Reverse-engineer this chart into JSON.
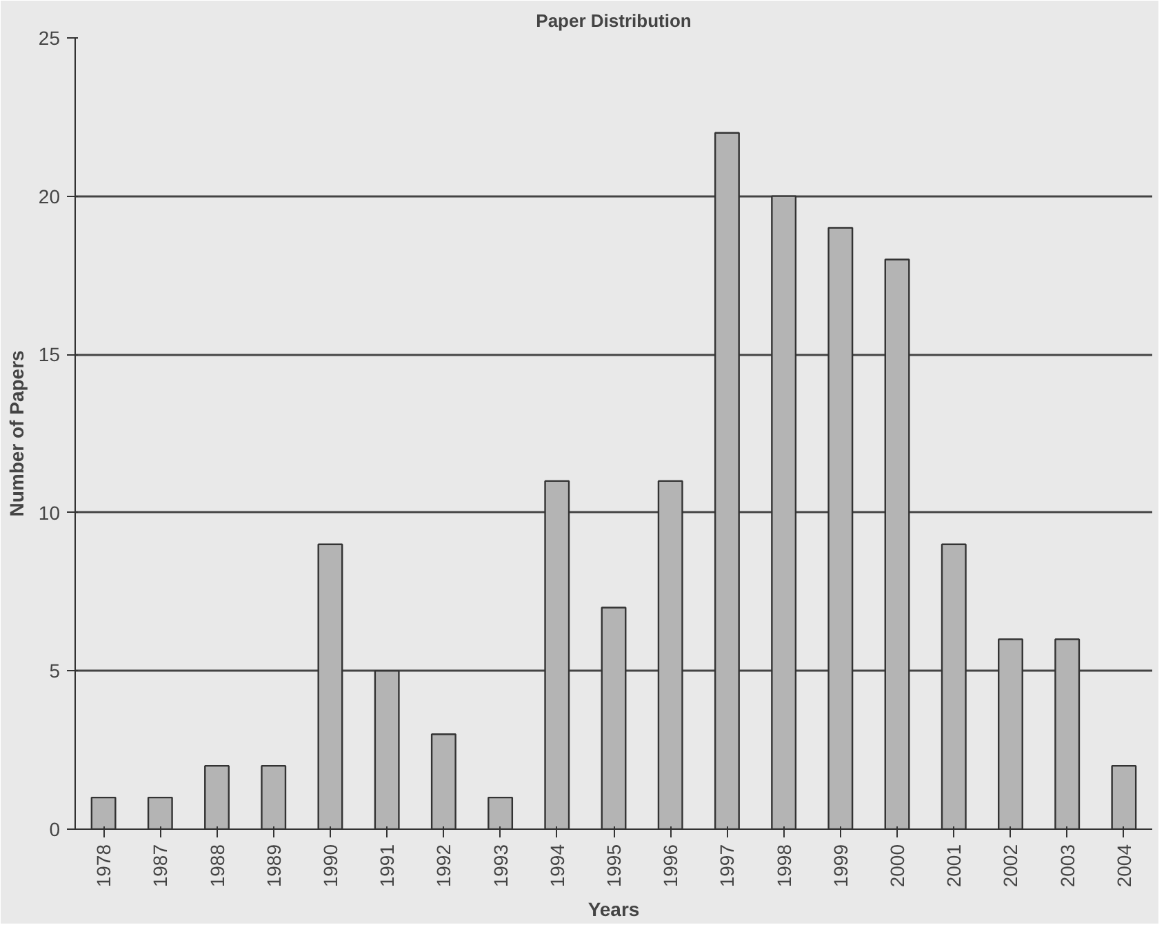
{
  "chart_data": {
    "type": "bar",
    "title": "Paper Distribution",
    "xlabel": "Years",
    "ylabel": "Number of Papers",
    "categories": [
      "1978",
      "1987",
      "1988",
      "1989",
      "1990",
      "1991",
      "1992",
      "1993",
      "1994",
      "1995",
      "1996",
      "1997",
      "1998",
      "1999",
      "2000",
      "2001",
      "2002",
      "2003",
      "2004"
    ],
    "values": [
      1,
      1,
      2,
      2,
      9,
      5,
      3,
      1,
      11,
      7,
      11,
      22,
      20,
      19,
      18,
      9,
      6,
      6,
      2
    ],
    "color": "#b4b4b4",
    "ylim": [
      0,
      25
    ],
    "yticks": [
      0,
      5,
      10,
      15,
      20,
      25
    ],
    "grid": "y"
  }
}
